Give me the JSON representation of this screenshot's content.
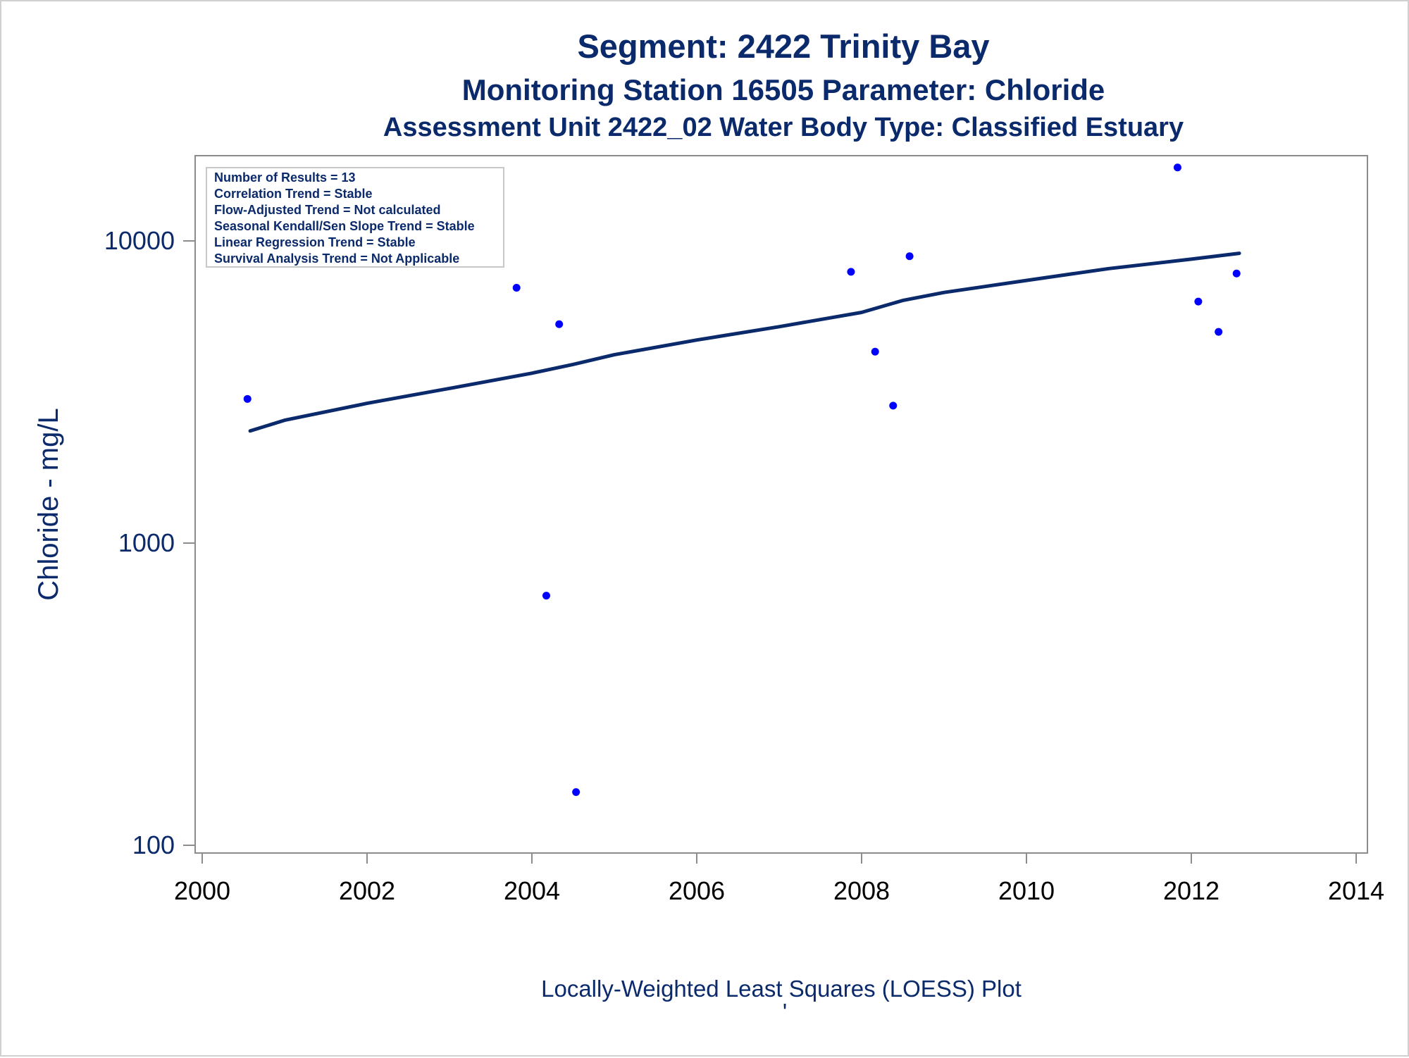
{
  "chart_data": {
    "type": "scatter",
    "title": "Segment: 2422  Trinity Bay",
    "subtitle": "Monitoring Station 16505 Parameter: Chloride",
    "subtitle2": "Assessment Unit 2422_02   Water Body Type: Classified Estuary",
    "xlabel": "",
    "ylabel": "Chloride - mg/L",
    "footnote": "Locally-Weighted Least Squares (LOESS) Plot",
    "footnote_mark": "'",
    "y_scale": "log",
    "xlim": [
      2000,
      2014
    ],
    "ylim": [
      100,
      18000
    ],
    "x_ticks": [
      "2000",
      "2002",
      "2004",
      "2006",
      "2008",
      "2010",
      "2012",
      "2014"
    ],
    "y_ticks": [
      "100",
      "1000",
      "10000"
    ],
    "grid": false,
    "legend": "none",
    "inset_position": "top-left",
    "inset_lines": [
      "Number of Results = 13",
      "Correlation Trend = Stable",
      "Flow-Adjusted Trend = Not calculated",
      "Seasonal Kendall/Sen Slope Trend = Stable",
      "Linear Regression Trend = Stable",
      "Survival Analysis Trend = Not Applicable"
    ],
    "points": [
      {
        "x": "2000-07-20",
        "y": 3000
      },
      {
        "x": "2003-10-25",
        "y": 7000
      },
      {
        "x": "2004-03-05",
        "y": 670
      },
      {
        "x": "2004-05-01",
        "y": 5300
      },
      {
        "x": "2004-07-15",
        "y": 150
      },
      {
        "x": "2007-11-15",
        "y": 7900
      },
      {
        "x": "2008-03-01",
        "y": 4300
      },
      {
        "x": "2008-05-20",
        "y": 2850
      },
      {
        "x": "2008-08-01",
        "y": 8900
      },
      {
        "x": "2011-11-01",
        "y": 17500
      },
      {
        "x": "2012-02-01",
        "y": 6300
      },
      {
        "x": "2012-05-01",
        "y": 5000
      },
      {
        "x": "2012-07-20",
        "y": 7800
      }
    ],
    "trend_line": [
      {
        "x": "2000-08-01",
        "y": 2350
      },
      {
        "x": "2001-01-01",
        "y": 2550
      },
      {
        "x": "2002-01-01",
        "y": 2900
      },
      {
        "x": "2003-01-01",
        "y": 3250
      },
      {
        "x": "2004-01-01",
        "y": 3650
      },
      {
        "x": "2004-07-01",
        "y": 3900
      },
      {
        "x": "2005-01-01",
        "y": 4200
      },
      {
        "x": "2006-01-01",
        "y": 4700
      },
      {
        "x": "2007-01-01",
        "y": 5200
      },
      {
        "x": "2008-01-01",
        "y": 5800
      },
      {
        "x": "2008-07-01",
        "y": 6350
      },
      {
        "x": "2009-01-01",
        "y": 6750
      },
      {
        "x": "2010-01-01",
        "y": 7400
      },
      {
        "x": "2011-01-01",
        "y": 8100
      },
      {
        "x": "2012-01-01",
        "y": 8700
      },
      {
        "x": "2012-08-01",
        "y": 9100
      }
    ],
    "colors": {
      "points": "#0000ff",
      "trend_line": "#0b2a6b",
      "text": "#0b2a6b",
      "axis": "#8c8c8c"
    }
  }
}
